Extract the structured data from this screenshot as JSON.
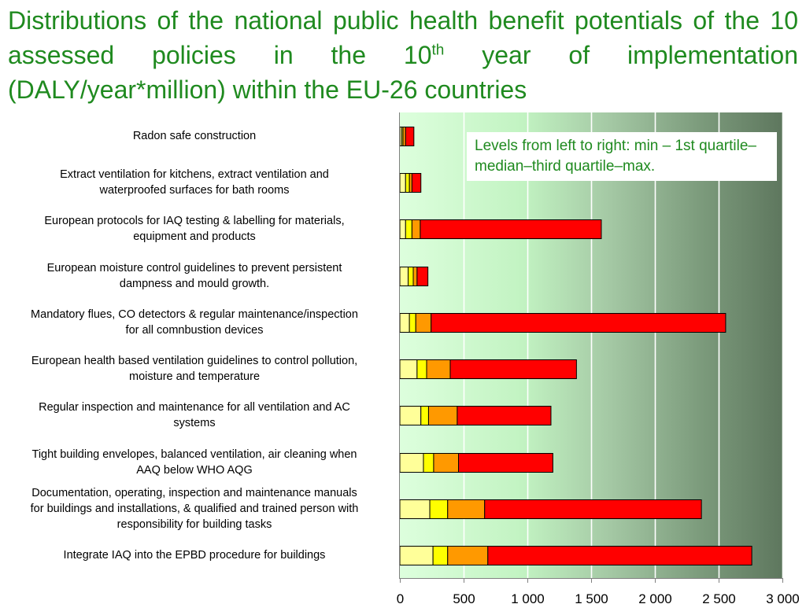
{
  "title": {
    "text_before": "Distributions of the national public health benefit potentials of the 10 assessed policies in the 10",
    "superscript": "th",
    "text_after": " year of implementation (DALY/year*million) within the EU-26 countries"
  },
  "note": "Levels from left to right: min – 1st quartile–median–third quartile–max.",
  "chart_data": {
    "type": "bar",
    "orientation": "horizontal",
    "stacked": true,
    "title": "Distributions of the national public health benefit potentials of the 10 assessed policies in the 10th year of implementation (DALY/year*million) within the EU-26 countries",
    "xlabel": "",
    "ylabel": "",
    "xlim": [
      0,
      3000
    ],
    "x_ticks": [
      0,
      500,
      1000,
      1500,
      2000,
      2500,
      3000
    ],
    "x_tick_labels": [
      "0",
      "500",
      "1 000",
      "1 500",
      "2 000",
      "2 500",
      "3 000"
    ],
    "grid": "vertical",
    "categories": [
      "Radon safe construction",
      "Extract ventilation for kitchens, extract ventilation and waterproofed surfaces for bath rooms",
      "European protocols for IAQ testing & labelling for materials, equipment and products",
      "European moisture control guidelines to prevent persistent dampness and mould growth.",
      "Mandatory flues, CO detectors & regular maintenance/inspection for all comnbustion devices",
      "European health based ventilation guidelines to control pollution, moisture and temperature",
      "Regular inspection and maintenance for all ventilation and AC systems",
      "Tight building envelopes, balanced ventilation, air cleaning when AAQ below WHO AQG",
      "Documentation, operating, inspection and maintenance manuals for buildings and installations, & qualified and trained person with responsibility for building tasks",
      "Integrate IAQ into the EPBD procedure for buildings"
    ],
    "category_lines": [
      [
        "Radon safe construction"
      ],
      [
        "Extract ventilation for kitchens, extract ventilation and",
        "waterproofed surfaces for bath rooms"
      ],
      [
        "European protocols for IAQ testing & labelling for materials,",
        "equipment and products"
      ],
      [
        "European moisture control guidelines to prevent persistent",
        "dampness and mould growth."
      ],
      [
        "Mandatory flues, CO detectors & regular maintenance/inspection",
        "for all comnbustion devices"
      ],
      [
        "European health based ventilation guidelines to control pollution,",
        "moisture and temperature"
      ],
      [
        "Regular inspection and maintenance for all ventilation and AC",
        "systems"
      ],
      [
        "Tight building envelopes, balanced ventilation, air cleaning when",
        "AAQ below WHO AQG"
      ],
      [
        "Documentation, operating, inspection and maintenance manuals",
        "for buildings and installations, & qualified and trained person with",
        "responsibility for building tasks"
      ],
      [
        "Integrate IAQ into the EPBD procedure for buildings"
      ]
    ],
    "levels": [
      "min",
      "1st quartile",
      "median",
      "third quartile",
      "max"
    ],
    "segment_colors": [
      "#ccffcc",
      "#ffff99",
      "#ffff00",
      "#ff9900",
      "#ff0000"
    ],
    "values": [
      [
        0,
        15,
        25,
        45,
        110
      ],
      [
        0,
        45,
        75,
        95,
        165
      ],
      [
        0,
        45,
        95,
        160,
        1580
      ],
      [
        0,
        65,
        105,
        135,
        220
      ],
      [
        0,
        75,
        125,
        245,
        2555
      ],
      [
        0,
        135,
        210,
        395,
        1385
      ],
      [
        0,
        165,
        225,
        450,
        1185
      ],
      [
        0,
        185,
        265,
        460,
        1200
      ],
      [
        0,
        235,
        375,
        665,
        2365
      ],
      [
        0,
        260,
        375,
        690,
        2760
      ]
    ]
  }
}
